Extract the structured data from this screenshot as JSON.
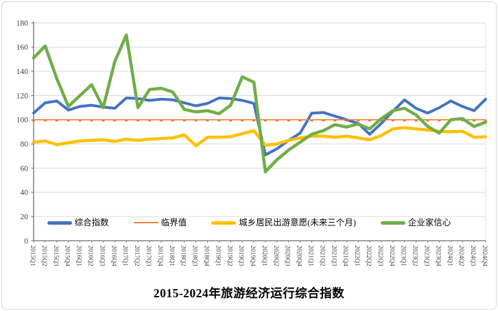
{
  "title": "2015-2024年旅游经济运行综合指数",
  "axis": {
    "ylim": [
      0,
      180
    ],
    "yticks": [
      0,
      20,
      40,
      60,
      80,
      100,
      120,
      140,
      160,
      180
    ],
    "tick_color": "#3a3f4a",
    "gridline_color": "#d9d9d9",
    "axis_line_color": "#6e6e6e"
  },
  "chart_data": {
    "type": "line",
    "title": "2015-2024年旅游经济运行综合指数",
    "xlabel": "",
    "ylabel": "",
    "ylim": [
      0,
      180
    ],
    "grid": true,
    "legend_position": "bottom",
    "x": [
      "2015Q1",
      "2015Q2",
      "2015Q3",
      "2015Q4",
      "2016Q1",
      "2016Q2",
      "2016Q3",
      "2016Q4",
      "2017Q1",
      "2017Q2",
      "2017Q3",
      "2017Q4",
      "2018Q1",
      "2018Q2",
      "2018Q3",
      "2018Q4",
      "2019Q1",
      "2019Q2",
      "2019Q3",
      "2019Q4",
      "2020Q1",
      "2020Q2",
      "2020Q3",
      "2020Q4",
      "2021Q1",
      "2021Q2",
      "2021Q3",
      "2021Q4",
      "2022Q1",
      "2022Q2",
      "2022Q3",
      "2022Q4",
      "2023Q1",
      "2023Q2",
      "2023Q3",
      "2023Q4",
      "2024Q1",
      "2024Q2",
      "2024Q3",
      "2024Q4"
    ],
    "series": [
      {
        "name": "综合指数",
        "color": "#4472c4",
        "stroke_width": 4,
        "swatch_height": 4.5,
        "markers": false,
        "values": [
          105.5,
          114,
          115.5,
          108,
          111,
          112,
          110.5,
          109.5,
          118,
          117.5,
          116,
          117,
          116.5,
          114,
          111.5,
          113.5,
          118,
          117.5,
          116,
          113.5,
          71,
          76,
          83,
          89,
          105.5,
          106,
          103,
          100,
          97,
          88,
          97,
          107,
          116.5,
          109.5,
          105.5,
          110,
          115.5,
          111,
          107.5,
          117
        ]
      },
      {
        "name": "临界值",
        "color": "#ed7d31",
        "stroke_width": 1.6,
        "swatch_height": 2,
        "markers": true,
        "marker_color": "#d9671f",
        "values": [
          100,
          100,
          100,
          100,
          100,
          100,
          100,
          100,
          100,
          100,
          100,
          100,
          100,
          100,
          100,
          100,
          100,
          100,
          100,
          100,
          100,
          100,
          100,
          100,
          100,
          100,
          100,
          100,
          100,
          100,
          100,
          100,
          100,
          100,
          100,
          100,
          100,
          100,
          100,
          100
        ]
      },
      {
        "name": "城乡居民出游意愿(未来三个月)",
        "color": "#ffc000",
        "stroke_width": 4.5,
        "swatch_height": 5,
        "markers": false,
        "values": [
          81.5,
          82.5,
          79.5,
          81,
          82.5,
          83,
          83.5,
          82,
          84,
          83,
          84,
          84.5,
          85,
          87.5,
          78.5,
          85.5,
          85.5,
          86,
          88.5,
          91,
          79,
          80,
          83,
          85,
          86.5,
          86.5,
          85.5,
          86.5,
          85,
          83.5,
          87,
          92.5,
          93.5,
          92.5,
          91.5,
          90.5,
          90,
          90.5,
          85.5,
          86
        ]
      },
      {
        "name": "企业家信心",
        "color": "#70ad47",
        "stroke_width": 4.5,
        "swatch_height": 5,
        "markers": false,
        "values": [
          151,
          161,
          134,
          111,
          120,
          129,
          110,
          148,
          170,
          110,
          125,
          126,
          123,
          108.5,
          106.5,
          107.5,
          105,
          112,
          135.5,
          131,
          57,
          67,
          75,
          81.5,
          88,
          91,
          96,
          94,
          96.5,
          92.5,
          101,
          107.5,
          109.5,
          104,
          94.5,
          89,
          100,
          101,
          94.5,
          98
        ]
      }
    ]
  }
}
